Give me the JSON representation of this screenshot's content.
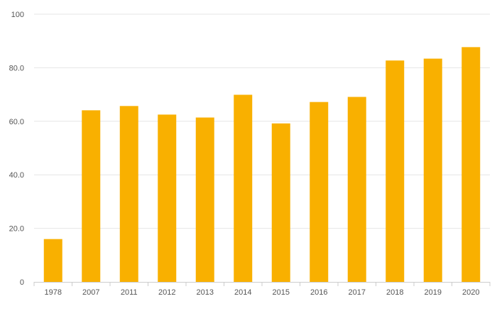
{
  "chart_data": {
    "type": "bar",
    "title": "",
    "xlabel": "",
    "ylabel": "",
    "categories": [
      "1978",
      "2007",
      "2011",
      "2012",
      "2013",
      "2014",
      "2015",
      "2016",
      "2017",
      "2018",
      "2019",
      "2020"
    ],
    "values": [
      16.0,
      64.1,
      65.7,
      62.5,
      61.4,
      69.9,
      59.2,
      67.2,
      69.1,
      82.7,
      83.4,
      87.7
    ],
    "ylim": [
      0,
      100
    ],
    "y_ticks": [
      {
        "value": 0,
        "label": "0"
      },
      {
        "value": 20,
        "label": "20.0"
      },
      {
        "value": 40,
        "label": "40.0"
      },
      {
        "value": 60,
        "label": "60.0"
      },
      {
        "value": 80,
        "label": "80.0"
      },
      {
        "value": 100,
        "label": "100"
      }
    ],
    "bar_color": "#F9B000",
    "grid": true,
    "legend": "none"
  }
}
